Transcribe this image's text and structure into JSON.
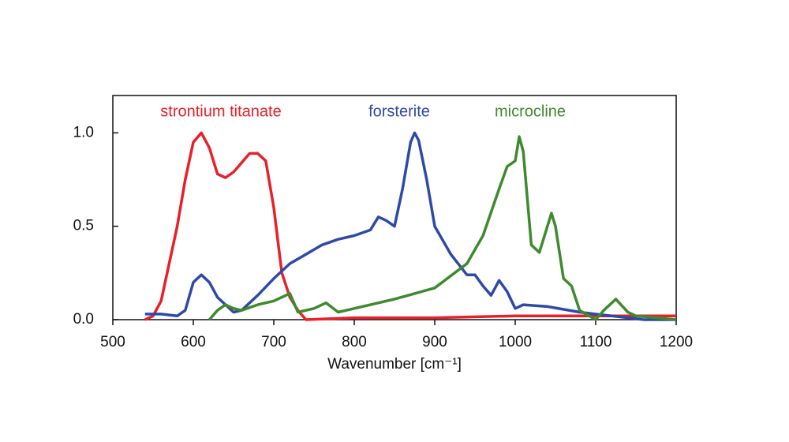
{
  "chart_data": {
    "type": "line",
    "xlabel": "Wavenumber [cm⁻¹]",
    "xlim": [
      500,
      1200
    ],
    "xticks": [
      500,
      600,
      700,
      800,
      900,
      1000,
      1100,
      1200
    ],
    "ylim": [
      0,
      1.2
    ],
    "yticks": [
      {
        "value": 0,
        "label": "0.0"
      },
      0.5,
      {
        "value": 1,
        "label": "1.0"
      }
    ],
    "grid": false,
    "series": [
      {
        "name": "strontium titanate",
        "color": "#e8202a",
        "x": [
          540,
          550,
          560,
          570,
          580,
          590,
          600,
          610,
          620,
          630,
          640,
          650,
          660,
          670,
          680,
          690,
          700,
          710,
          720,
          730,
          740,
          800,
          900,
          1000,
          1100,
          1150,
          1200
        ],
        "values": [
          0.0,
          0.02,
          0.1,
          0.3,
          0.5,
          0.75,
          0.95,
          1.0,
          0.92,
          0.78,
          0.76,
          0.79,
          0.84,
          0.89,
          0.89,
          0.85,
          0.6,
          0.25,
          0.12,
          0.05,
          0.0,
          0.01,
          0.01,
          0.02,
          0.02,
          0.02,
          0.02
        ]
      },
      {
        "name": "forsterite",
        "color": "#2e4aa8",
        "x": [
          540,
          560,
          580,
          590,
          600,
          610,
          620,
          630,
          640,
          650,
          660,
          680,
          700,
          720,
          740,
          760,
          780,
          800,
          820,
          830,
          840,
          850,
          860,
          870,
          875,
          880,
          890,
          900,
          920,
          940,
          950,
          960,
          970,
          980,
          990,
          1000,
          1010,
          1040,
          1080,
          1120,
          1160,
          1200
        ],
        "values": [
          0.03,
          0.03,
          0.02,
          0.05,
          0.2,
          0.24,
          0.2,
          0.12,
          0.08,
          0.04,
          0.05,
          0.13,
          0.22,
          0.3,
          0.35,
          0.4,
          0.43,
          0.45,
          0.48,
          0.55,
          0.53,
          0.5,
          0.7,
          0.95,
          1.0,
          0.96,
          0.75,
          0.5,
          0.35,
          0.24,
          0.24,
          0.18,
          0.13,
          0.21,
          0.15,
          0.06,
          0.08,
          0.07,
          0.04,
          0.02,
          0.0,
          0.0
        ]
      },
      {
        "name": "microcline",
        "color": "#3e8a2e",
        "x": [
          620,
          630,
          640,
          650,
          660,
          680,
          700,
          720,
          730,
          750,
          765,
          780,
          800,
          850,
          900,
          940,
          960,
          980,
          990,
          1000,
          1005,
          1010,
          1020,
          1030,
          1040,
          1045,
          1050,
          1060,
          1070,
          1080,
          1100,
          1110,
          1125,
          1140,
          1150,
          1200
        ],
        "values": [
          0.0,
          0.05,
          0.08,
          0.06,
          0.05,
          0.08,
          0.1,
          0.14,
          0.04,
          0.06,
          0.09,
          0.04,
          0.06,
          0.11,
          0.17,
          0.3,
          0.45,
          0.7,
          0.82,
          0.85,
          0.98,
          0.9,
          0.4,
          0.36,
          0.5,
          0.57,
          0.5,
          0.22,
          0.18,
          0.05,
          0.0,
          0.05,
          0.11,
          0.04,
          0.02,
          0.0
        ]
      }
    ]
  }
}
